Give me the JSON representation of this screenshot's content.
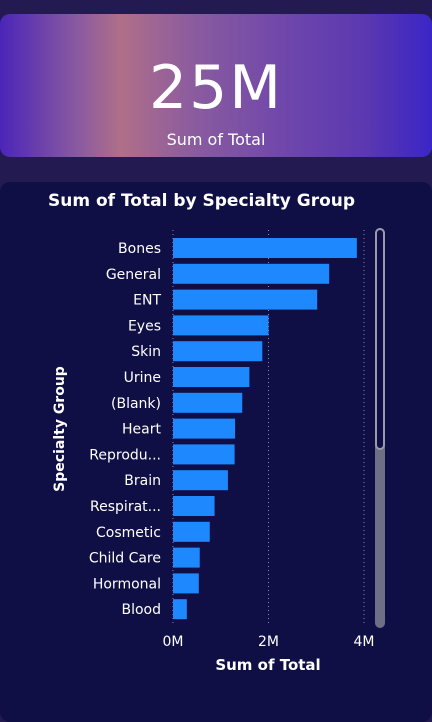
{
  "kpi": {
    "value": "25M",
    "label": "Sum of Total"
  },
  "colors": {
    "bar": "#1e88ff",
    "text": "#ffffff",
    "gridline": "#8a8aa8"
  },
  "chart_data": {
    "type": "bar",
    "orientation": "horizontal",
    "title": "Sum of Total by Specialty Group",
    "xlabel": "Sum of Total",
    "ylabel": "Specialty Group",
    "categories": [
      "Bones",
      "General",
      "ENT",
      "Eyes",
      "Skin",
      "Urine",
      "(Blank)",
      "Heart",
      "Reprodu...",
      "Brain",
      "Respirat...",
      "Cosmetic",
      "Child Care",
      "Hormonal",
      "Blood"
    ],
    "values": [
      3.85,
      3.27,
      3.02,
      2.0,
      1.87,
      1.6,
      1.45,
      1.3,
      1.29,
      1.15,
      0.87,
      0.77,
      0.56,
      0.54,
      0.29
    ],
    "value_unit": "M",
    "xlim": [
      0,
      4
    ],
    "xticks": [
      "0M",
      "2M",
      "4M"
    ],
    "grid": true,
    "scrollbar": true
  }
}
